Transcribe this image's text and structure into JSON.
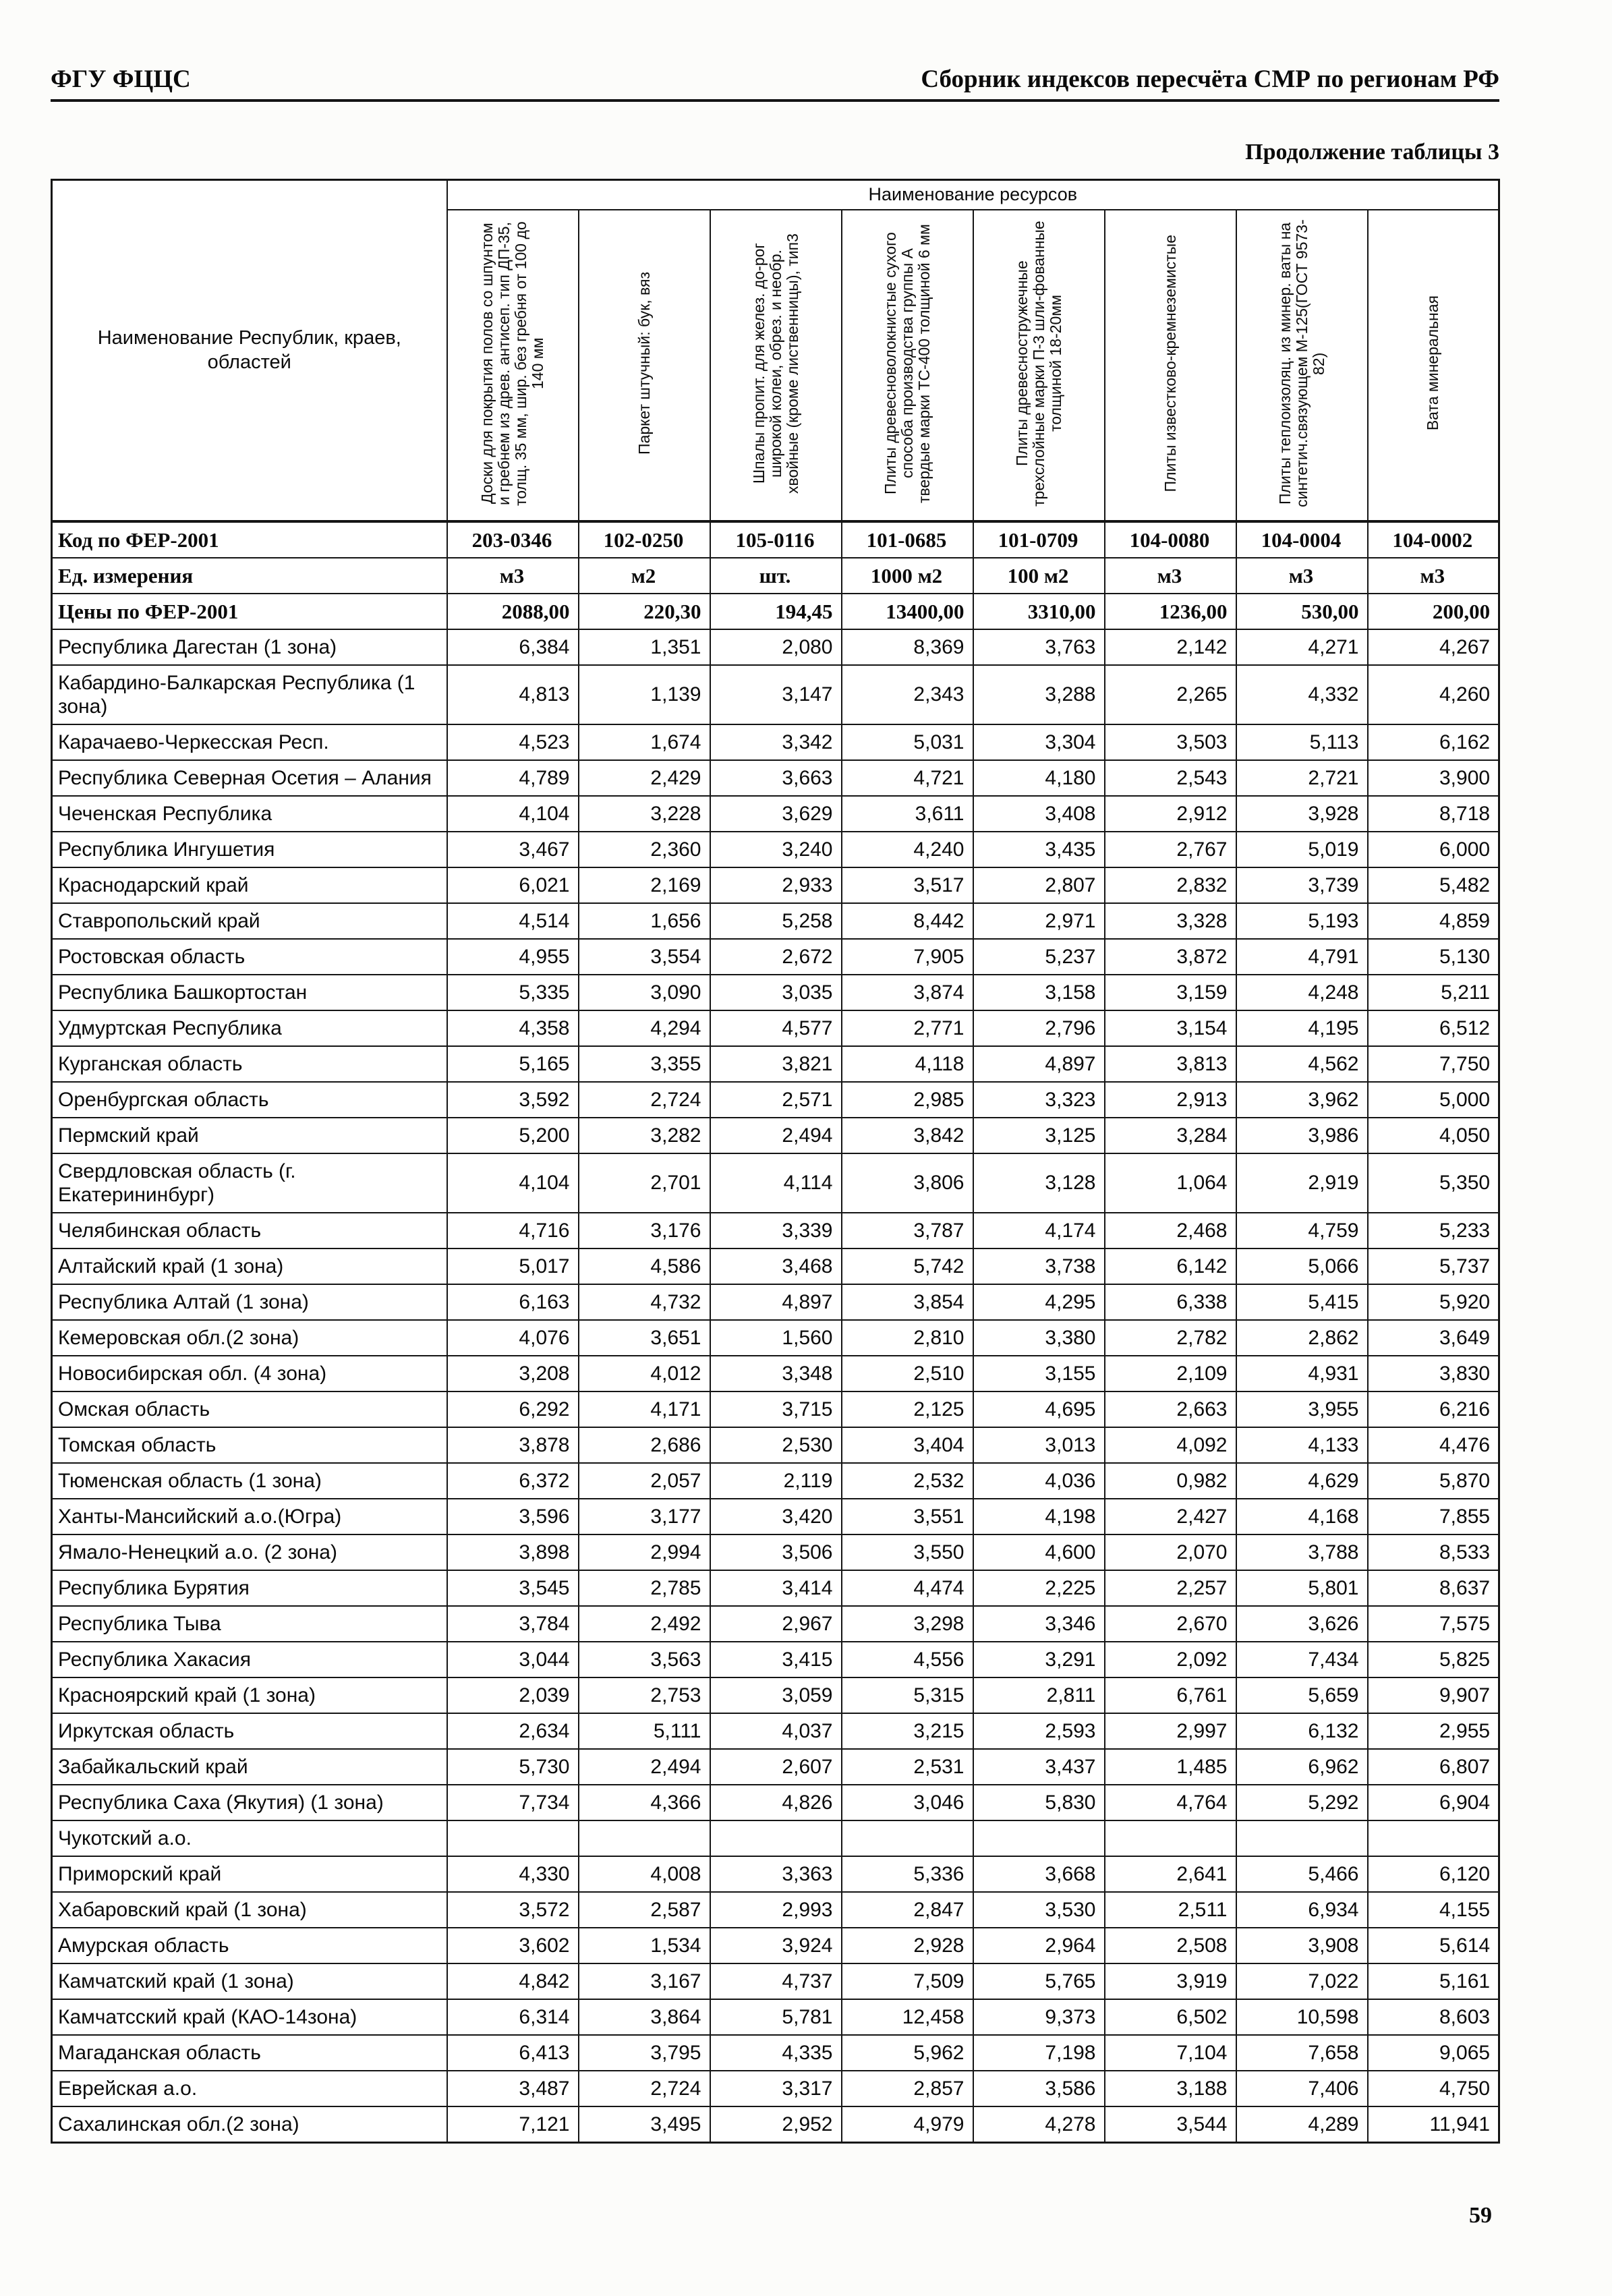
{
  "page": {
    "header_left": "ФГУ ФЦЦС",
    "header_right": "Сборник индексов пересчёта СМР  по регионам РФ",
    "table_caption": "Продолжение таблицы 3",
    "page_number": "59"
  },
  "table": {
    "region_header": "Наименование Республик, краев, областей",
    "resources_header": "Наименование ресурсов",
    "columns": [
      "Доски для покрытия полов со шпунтом и гребнем из древ. антисеп. тип ДП-35, толщ. 35 мм, шир. без гребня от 100 до 140 мм",
      "Паркет штучный: бук, вяз",
      "Шпалы пропит. для желез. до-рог широкой колеи, обрез. и необр. хвойные (кроме лиственницы), тип3",
      "Плиты древесноволокнистые сухого способа производства группы А твердые марки ТС-400 толщиной 6 мм",
      "Плиты древесностружечные трехслойные марки П-3 шли-фованные толщиной 18-20мм",
      "Плиты известково-кремнеземистые",
      "Плиты теплоизоляц. из минер. ваты на синтетич.связующем М-125(ГОСТ 9573-82)",
      "Вата минеральная"
    ],
    "meta_rows": [
      {
        "label": "Код по ФЕР-2001",
        "values": [
          "203-0346",
          "102-0250",
          "105-0116",
          "101-0685",
          "101-0709",
          "104-0080",
          "104-0004",
          "104-0002"
        ]
      },
      {
        "label": "Ед. измерения",
        "values": [
          "м3",
          "м2",
          "шт.",
          "1000 м2",
          "100 м2",
          "м3",
          "м3",
          "м3"
        ]
      },
      {
        "label": "Цены по ФЕР-2001",
        "values": [
          "2088,00",
          "220,30",
          "194,45",
          "13400,00",
          "3310,00",
          "1236,00",
          "530,00",
          "200,00"
        ]
      }
    ],
    "rows": [
      {
        "region": "Республика Дагестан (1 зона)",
        "values": [
          "6,384",
          "1,351",
          "2,080",
          "8,369",
          "3,763",
          "2,142",
          "4,271",
          "4,267"
        ]
      },
      {
        "region": "Кабардино-Балкарская Республика (1 зона)",
        "values": [
          "4,813",
          "1,139",
          "3,147",
          "2,343",
          "3,288",
          "2,265",
          "4,332",
          "4,260"
        ]
      },
      {
        "region": "Карачаево-Черкесская Респ.",
        "values": [
          "4,523",
          "1,674",
          "3,342",
          "5,031",
          "3,304",
          "3,503",
          "5,113",
          "6,162"
        ]
      },
      {
        "region": "Республика Северная Осетия – Алания",
        "values": [
          "4,789",
          "2,429",
          "3,663",
          "4,721",
          "4,180",
          "2,543",
          "2,721",
          "3,900"
        ]
      },
      {
        "region": "Чеченская Республика",
        "values": [
          "4,104",
          "3,228",
          "3,629",
          "3,611",
          "3,408",
          "2,912",
          "3,928",
          "8,718"
        ]
      },
      {
        "region": "Республика Ингушетия",
        "values": [
          "3,467",
          "2,360",
          "3,240",
          "4,240",
          "3,435",
          "2,767",
          "5,019",
          "6,000"
        ]
      },
      {
        "region": "Краснодарский край",
        "values": [
          "6,021",
          "2,169",
          "2,933",
          "3,517",
          "2,807",
          "2,832",
          "3,739",
          "5,482"
        ]
      },
      {
        "region": "Ставропольский край",
        "values": [
          "4,514",
          "1,656",
          "5,258",
          "8,442",
          "2,971",
          "3,328",
          "5,193",
          "4,859"
        ]
      },
      {
        "region": "Ростовская область",
        "values": [
          "4,955",
          "3,554",
          "2,672",
          "7,905",
          "5,237",
          "3,872",
          "4,791",
          "5,130"
        ]
      },
      {
        "region": "Республика Башкортостан",
        "values": [
          "5,335",
          "3,090",
          "3,035",
          "3,874",
          "3,158",
          "3,159",
          "4,248",
          "5,211"
        ]
      },
      {
        "region": "Удмуртская Республика",
        "values": [
          "4,358",
          "4,294",
          "4,577",
          "2,771",
          "2,796",
          "3,154",
          "4,195",
          "6,512"
        ]
      },
      {
        "region": "Курганская область",
        "values": [
          "5,165",
          "3,355",
          "3,821",
          "4,118",
          "4,897",
          "3,813",
          "4,562",
          "7,750"
        ]
      },
      {
        "region": "Оренбургская область",
        "values": [
          "3,592",
          "2,724",
          "2,571",
          "2,985",
          "3,323",
          "2,913",
          "3,962",
          "5,000"
        ]
      },
      {
        "region": "Пермский край",
        "values": [
          "5,200",
          "3,282",
          "2,494",
          "3,842",
          "3,125",
          "3,284",
          "3,986",
          "4,050"
        ]
      },
      {
        "region": "Свердловская область (г. Екатерининбург)",
        "values": [
          "4,104",
          "2,701",
          "4,114",
          "3,806",
          "3,128",
          "1,064",
          "2,919",
          "5,350"
        ]
      },
      {
        "region": "Челябинская область",
        "values": [
          "4,716",
          "3,176",
          "3,339",
          "3,787",
          "4,174",
          "2,468",
          "4,759",
          "5,233"
        ]
      },
      {
        "region": "Алтайский край (1 зона)",
        "values": [
          "5,017",
          "4,586",
          "3,468",
          "5,742",
          "3,738",
          "6,142",
          "5,066",
          "5,737"
        ]
      },
      {
        "region": "Республика Алтай (1 зона)",
        "values": [
          "6,163",
          "4,732",
          "4,897",
          "3,854",
          "4,295",
          "6,338",
          "5,415",
          "5,920"
        ]
      },
      {
        "region": "Кемеровская обл.(2 зона)",
        "values": [
          "4,076",
          "3,651",
          "1,560",
          "2,810",
          "3,380",
          "2,782",
          "2,862",
          "3,649"
        ]
      },
      {
        "region": "Новосибирская обл. (4 зона)",
        "values": [
          "3,208",
          "4,012",
          "3,348",
          "2,510",
          "3,155",
          "2,109",
          "4,931",
          "3,830"
        ]
      },
      {
        "region": "Омская область",
        "values": [
          "6,292",
          "4,171",
          "3,715",
          "2,125",
          "4,695",
          "2,663",
          "3,955",
          "6,216"
        ]
      },
      {
        "region": "Томская область",
        "values": [
          "3,878",
          "2,686",
          "2,530",
          "3,404",
          "3,013",
          "4,092",
          "4,133",
          "4,476"
        ]
      },
      {
        "region": "Тюменская область (1 зона)",
        "values": [
          "6,372",
          "2,057",
          "2,119",
          "2,532",
          "4,036",
          "0,982",
          "4,629",
          "5,870"
        ]
      },
      {
        "region": "Ханты-Мансийский а.о.(Югра)",
        "values": [
          "3,596",
          "3,177",
          "3,420",
          "3,551",
          "4,198",
          "2,427",
          "4,168",
          "7,855"
        ]
      },
      {
        "region": "Ямало-Ненецкий а.о. (2 зона)",
        "values": [
          "3,898",
          "2,994",
          "3,506",
          "3,550",
          "4,600",
          "2,070",
          "3,788",
          "8,533"
        ]
      },
      {
        "region": "Республика Бурятия",
        "values": [
          "3,545",
          "2,785",
          "3,414",
          "4,474",
          "2,225",
          "2,257",
          "5,801",
          "8,637"
        ]
      },
      {
        "region": "Республика Тыва",
        "values": [
          "3,784",
          "2,492",
          "2,967",
          "3,298",
          "3,346",
          "2,670",
          "3,626",
          "7,575"
        ]
      },
      {
        "region": "Республика Хакасия",
        "values": [
          "3,044",
          "3,563",
          "3,415",
          "4,556",
          "3,291",
          "2,092",
          "7,434",
          "5,825"
        ]
      },
      {
        "region": "Красноярский край (1 зона)",
        "values": [
          "2,039",
          "2,753",
          "3,059",
          "5,315",
          "2,811",
          "6,761",
          "5,659",
          "9,907"
        ]
      },
      {
        "region": "Иркутская область",
        "values": [
          "2,634",
          "5,111",
          "4,037",
          "3,215",
          "2,593",
          "2,997",
          "6,132",
          "2,955"
        ]
      },
      {
        "region": "Забайкальский край",
        "values": [
          "5,730",
          "2,494",
          "2,607",
          "2,531",
          "3,437",
          "1,485",
          "6,962",
          "6,807"
        ]
      },
      {
        "region": "Республика Саха (Якутия) (1 зона)",
        "values": [
          "7,734",
          "4,366",
          "4,826",
          "3,046",
          "5,830",
          "4,764",
          "5,292",
          "6,904"
        ]
      },
      {
        "region": "Чукотский а.о.",
        "values": [
          "",
          "",
          "",
          "",
          "",
          "",
          "",
          ""
        ]
      },
      {
        "region": "Приморский край",
        "values": [
          "4,330",
          "4,008",
          "3,363",
          "5,336",
          "3,668",
          "2,641",
          "5,466",
          "6,120"
        ]
      },
      {
        "region": "Хабаровский край (1 зона)",
        "values": [
          "3,572",
          "2,587",
          "2,993",
          "2,847",
          "3,530",
          "2,511",
          "6,934",
          "4,155"
        ]
      },
      {
        "region": "Амурская область",
        "values": [
          "3,602",
          "1,534",
          "3,924",
          "2,928",
          "2,964",
          "2,508",
          "3,908",
          "5,614"
        ]
      },
      {
        "region": "Камчатский край (1 зона)",
        "values": [
          "4,842",
          "3,167",
          "4,737",
          "7,509",
          "5,765",
          "3,919",
          "7,022",
          "5,161"
        ]
      },
      {
        "region": "Камчатсский край (КАО-14зона)",
        "values": [
          "6,314",
          "3,864",
          "5,781",
          "12,458",
          "9,373",
          "6,502",
          "10,598",
          "8,603"
        ]
      },
      {
        "region": "Магаданская область",
        "values": [
          "6,413",
          "3,795",
          "4,335",
          "5,962",
          "7,198",
          "7,104",
          "7,658",
          "9,065"
        ]
      },
      {
        "region": "Еврейская а.о.",
        "values": [
          "3,487",
          "2,724",
          "3,317",
          "2,857",
          "3,586",
          "3,188",
          "7,406",
          "4,750"
        ]
      },
      {
        "region": "Сахалинская обл.(2 зона)",
        "values": [
          "7,121",
          "3,495",
          "2,952",
          "4,979",
          "4,278",
          "3,544",
          "4,289",
          "11,941"
        ]
      }
    ]
  }
}
